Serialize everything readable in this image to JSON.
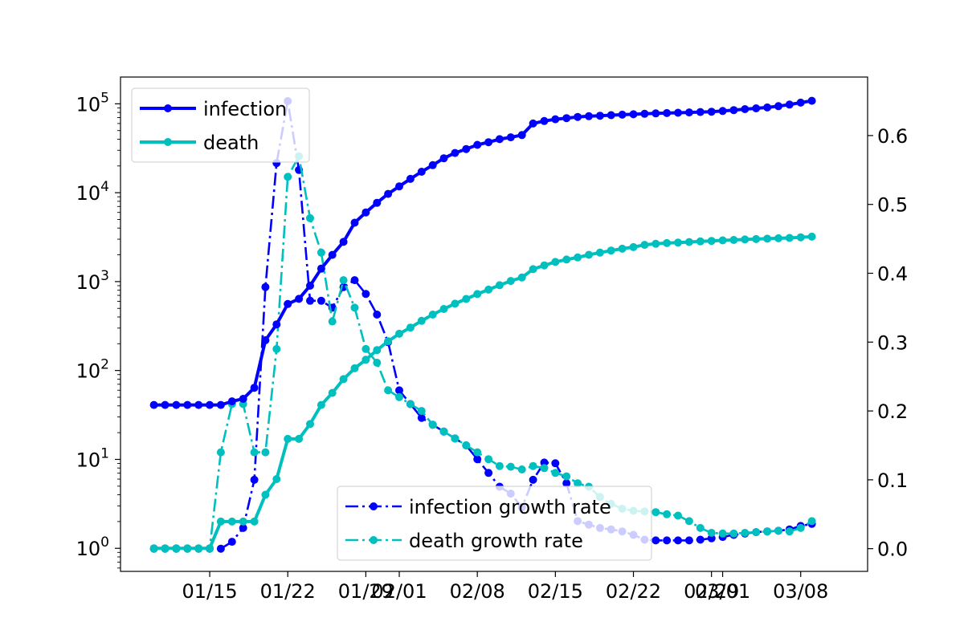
{
  "chart_data": {
    "type": "line",
    "title": "",
    "xlabel": "",
    "ylabel_left": "",
    "ylabel_right": "",
    "grid": false,
    "left_axis": {
      "scale": "log",
      "ylim": [
        0.55,
        200000
      ],
      "tick_values": [
        1,
        10,
        100,
        1000,
        10000,
        100000
      ],
      "tick_labels": [
        {
          "base": "10",
          "exp": "0"
        },
        {
          "base": "10",
          "exp": "1"
        },
        {
          "base": "10",
          "exp": "2"
        },
        {
          "base": "10",
          "exp": "3"
        },
        {
          "base": "10",
          "exp": "4"
        },
        {
          "base": "10",
          "exp": "5"
        }
      ]
    },
    "right_axis": {
      "scale": "linear",
      "ylim": [
        -0.033,
        0.685
      ],
      "tick_values": [
        0.0,
        0.1,
        0.2,
        0.3,
        0.4,
        0.5,
        0.6
      ],
      "tick_labels": [
        "0.0",
        "0.1",
        "0.2",
        "0.3",
        "0.4",
        "0.5",
        "0.6"
      ]
    },
    "x_axis": {
      "xlim": [
        "2020-01-07",
        "2020-03-14"
      ],
      "ticks": [
        {
          "date": "2020-01-15",
          "label": "01/15"
        },
        {
          "date": "2020-01-22",
          "label": "01/22"
        },
        {
          "date": "2020-01-29",
          "label": "01/29"
        },
        {
          "date": "2020-02-01",
          "label": "02/01"
        },
        {
          "date": "2020-02-08",
          "label": "02/08"
        },
        {
          "date": "2020-02-15",
          "label": "02/15"
        },
        {
          "date": "2020-02-22",
          "label": "02/22"
        },
        {
          "date": "2020-02-29",
          "label": "02/29"
        },
        {
          "date": "2020-03-01",
          "label": "03/01"
        },
        {
          "date": "2020-03-08",
          "label": "03/08"
        }
      ]
    },
    "dates": [
      "2020-01-10",
      "2020-01-11",
      "2020-01-12",
      "2020-01-13",
      "2020-01-14",
      "2020-01-15",
      "2020-01-16",
      "2020-01-17",
      "2020-01-18",
      "2020-01-19",
      "2020-01-20",
      "2020-01-21",
      "2020-01-22",
      "2020-01-23",
      "2020-01-24",
      "2020-01-25",
      "2020-01-26",
      "2020-01-27",
      "2020-01-28",
      "2020-01-29",
      "2020-01-30",
      "2020-01-31",
      "2020-02-01",
      "2020-02-02",
      "2020-02-03",
      "2020-02-04",
      "2020-02-05",
      "2020-02-06",
      "2020-02-07",
      "2020-02-08",
      "2020-02-09",
      "2020-02-10",
      "2020-02-11",
      "2020-02-12",
      "2020-02-13",
      "2020-02-14",
      "2020-02-15",
      "2020-02-16",
      "2020-02-17",
      "2020-02-18",
      "2020-02-19",
      "2020-02-20",
      "2020-02-21",
      "2020-02-22",
      "2020-02-23",
      "2020-02-24",
      "2020-02-25",
      "2020-02-26",
      "2020-02-27",
      "2020-02-28",
      "2020-02-29",
      "2020-03-01",
      "2020-03-02",
      "2020-03-03",
      "2020-03-04",
      "2020-03-05",
      "2020-03-06",
      "2020-03-07",
      "2020-03-08",
      "2020-03-09"
    ],
    "series": [
      {
        "name": "infection",
        "axis": "left",
        "color": "#0000ff",
        "style": "solid",
        "values": [
          41,
          41,
          41,
          41,
          41,
          41,
          41,
          45,
          48,
          64,
          219,
          330,
          560,
          640,
          900,
          1400,
          2000,
          2800,
          4600,
          6000,
          7700,
          9700,
          11800,
          14300,
          17200,
          20400,
          24400,
          28000,
          31000,
          34500,
          37000,
          40000,
          42000,
          44500,
          60000,
          64000,
          67000,
          69000,
          71200,
          72500,
          73500,
          74500,
          75400,
          76300,
          77200,
          78000,
          78600,
          79300,
          80000,
          80800,
          81500,
          83000,
          85000,
          87000,
          89000,
          91000,
          94000,
          98000,
          103000,
          108000
        ]
      },
      {
        "name": "death",
        "axis": "left",
        "color": "#00bfbf",
        "style": "solid",
        "values": [
          1,
          1,
          1,
          1,
          1,
          1,
          2,
          2,
          2,
          2,
          4,
          6,
          17,
          17,
          25,
          41,
          56,
          80,
          106,
          132,
          170,
          213,
          259,
          304,
          362,
          426,
          492,
          565,
          638,
          724,
          813,
          910,
          1016,
          1113,
          1380,
          1523,
          1665,
          1770,
          1868,
          2004,
          2118,
          2236,
          2345,
          2442,
          2592,
          2663,
          2715,
          2744,
          2788,
          2835,
          2870,
          2912,
          2943,
          2981,
          3012,
          3042,
          3070,
          3097,
          3150,
          3200
        ]
      },
      {
        "name": "infection growth rate",
        "axis": "right",
        "color": "#0000ff",
        "style": "dashdot",
        "values": [
          0.0,
          0.0,
          0.0,
          0.0,
          0.0,
          0.0,
          0.0,
          0.01,
          0.03,
          0.1,
          0.38,
          0.56,
          0.65,
          0.55,
          0.36,
          0.36,
          0.35,
          0.38,
          0.39,
          0.37,
          0.34,
          0.3,
          0.23,
          0.21,
          0.19,
          0.18,
          0.17,
          0.16,
          0.15,
          0.13,
          0.11,
          0.09,
          0.08,
          0.06,
          0.1,
          0.125,
          0.124,
          0.095,
          0.04,
          0.035,
          0.03,
          0.028,
          0.025,
          0.02,
          0.013,
          0.012,
          0.012,
          0.012,
          0.012,
          0.013,
          0.015,
          0.017,
          0.02,
          0.022,
          0.024,
          0.025,
          0.026,
          0.028,
          0.033,
          0.036
        ]
      },
      {
        "name": "death growth rate",
        "axis": "right",
        "color": "#00bfbf",
        "style": "dashdot",
        "values": [
          0.0,
          0.0,
          0.0,
          0.0,
          0.0,
          0.0,
          0.14,
          0.21,
          0.21,
          0.14,
          0.14,
          0.29,
          0.54,
          0.57,
          0.48,
          0.43,
          0.33,
          0.39,
          0.35,
          0.29,
          0.27,
          0.23,
          0.22,
          0.21,
          0.2,
          0.18,
          0.17,
          0.16,
          0.15,
          0.14,
          0.13,
          0.12,
          0.119,
          0.115,
          0.12,
          0.117,
          0.11,
          0.105,
          0.095,
          0.09,
          0.075,
          0.065,
          0.058,
          0.055,
          0.054,
          0.053,
          0.05,
          0.048,
          0.04,
          0.03,
          0.023,
          0.022,
          0.022,
          0.023,
          0.024,
          0.025,
          0.026,
          0.025,
          0.03,
          0.04
        ]
      }
    ],
    "legends": [
      {
        "placement": "top-left",
        "entries": [
          "infection",
          "death"
        ]
      },
      {
        "placement": "lower-center",
        "entries": [
          "infection growth rate",
          "death growth rate"
        ]
      }
    ]
  }
}
